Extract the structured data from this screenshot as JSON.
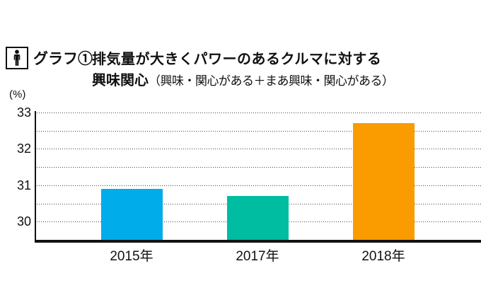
{
  "header": {
    "icon": "person-icon",
    "graph_label": "グラフ①",
    "title_line1": "排気量が大きくパワーのあるクルマに対する",
    "title_line2_bold": "興味関心",
    "title_line2_note": "（興味・関心がある＋まあ興味・関心がある）"
  },
  "chart_data": {
    "type": "bar",
    "title": "グラフ① 排気量が大きくパワーのあるクルマに対する興味関心（興味・関心がある＋まあ興味・関心がある）",
    "unit_label": "(%)",
    "categories": [
      "2015年",
      "2017年",
      "2018年"
    ],
    "values": [
      30.9,
      30.7,
      32.7
    ],
    "bar_colors": [
      "#00ACEA",
      "#00BCA0",
      "#FA9B00"
    ],
    "ylabel": "(%)",
    "xlabel": "",
    "ylim": [
      29.5,
      33
    ],
    "yticks": [
      33,
      32,
      31,
      30
    ],
    "gridline_step": 0.5,
    "grid": true,
    "legend": "none",
    "axis_color": "#111111",
    "grid_color": "#454545"
  }
}
